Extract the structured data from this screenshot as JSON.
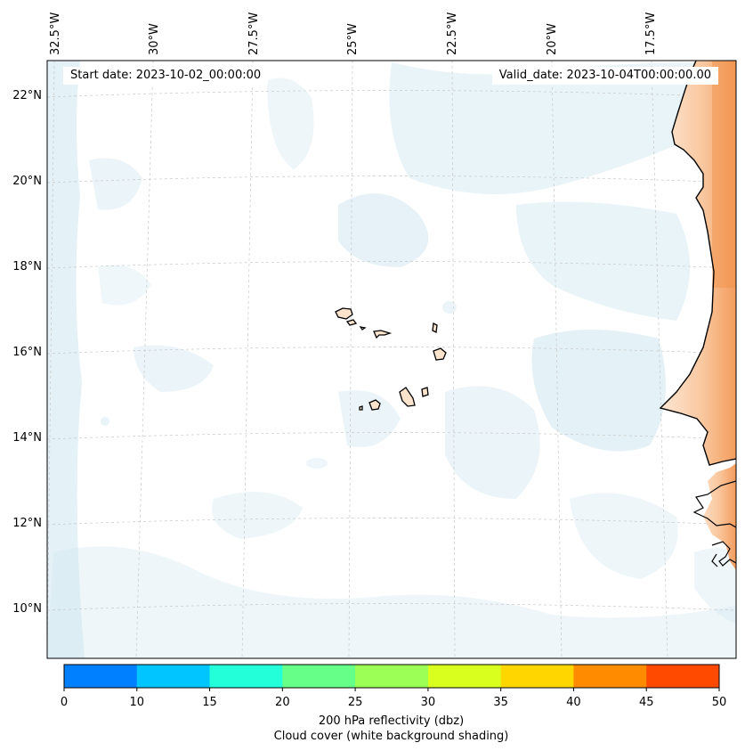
{
  "header": {
    "start_date": "Start date: 2023-10-02_00:00:00",
    "valid_date": "Valid_date: 2023-10-04T00:00:00.00"
  },
  "map": {
    "lon_labels": [
      "32.5°W",
      "30°W",
      "27.5°W",
      "25°W",
      "22.5°W",
      "20°W",
      "17.5°W"
    ],
    "lat_labels": [
      "22°N",
      "20°N",
      "18°N",
      "16°N",
      "14°N",
      "12°N",
      "10°N"
    ],
    "features": [
      "cape-verde-islands",
      "west-africa-coastline"
    ],
    "colors": {
      "land": "#fbe3cc",
      "land_strong": "#f7a96a",
      "cloud": "#cde6ef"
    }
  },
  "colorbar": {
    "ticks": [
      "0",
      "10",
      "15",
      "20",
      "25",
      "30",
      "35",
      "40",
      "45",
      "50"
    ],
    "colors": [
      "#0080ff",
      "#00c5ff",
      "#22ffd9",
      "#66ff88",
      "#9cff55",
      "#d8ff1e",
      "#ffd600",
      "#ff8c00",
      "#ff4a00"
    ],
    "label_line1": "200 hPa reflectivity (dbz)",
    "label_line2": "Cloud cover (white background shading)"
  }
}
